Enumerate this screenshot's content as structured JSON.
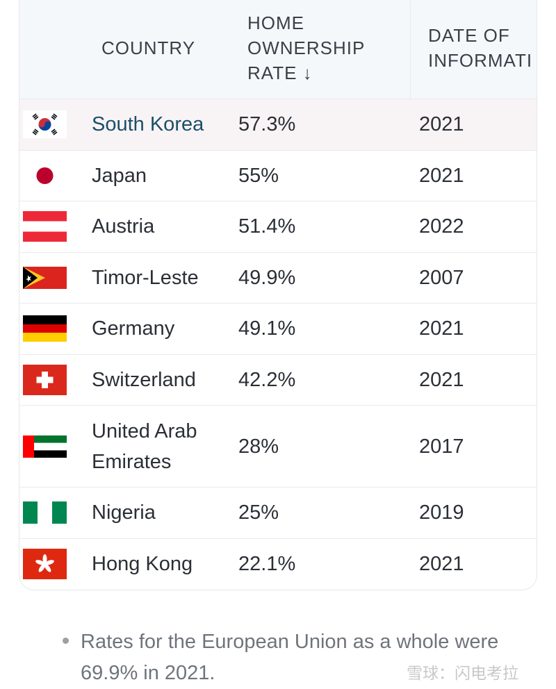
{
  "table": {
    "headers": {
      "country": "COUNTRY",
      "rate": "HOME OWNERSHIP RATE",
      "rate_sort_icon": "arrow-down-icon",
      "date": "DATE OF INFORMATI"
    },
    "rows": [
      {
        "flag": "south-korea-flag",
        "country": "South Korea",
        "rate": "57.3%",
        "date": "2021"
      },
      {
        "flag": "japan-flag",
        "country": "Japan",
        "rate": "55%",
        "date": "2021"
      },
      {
        "flag": "austria-flag",
        "country": "Austria",
        "rate": "51.4%",
        "date": "2022"
      },
      {
        "flag": "timor-leste-flag",
        "country": "Timor-Leste",
        "rate": "49.9%",
        "date": "2007"
      },
      {
        "flag": "germany-flag",
        "country": "Germany",
        "rate": "49.1%",
        "date": "2021"
      },
      {
        "flag": "switzerland-flag",
        "country": "Switzerland",
        "rate": "42.2%",
        "date": "2021"
      },
      {
        "flag": "uae-flag",
        "country": "United Arab Emirates",
        "rate": "28%",
        "date": "2017"
      },
      {
        "flag": "nigeria-flag",
        "country": "Nigeria",
        "rate": "25%",
        "date": "2019"
      },
      {
        "flag": "hong-kong-flag",
        "country": "Hong Kong",
        "rate": "22.1%",
        "date": "2021"
      }
    ]
  },
  "note": "Rates for the European Union as a whole were 69.9% in 2021.",
  "watermark": "雪球：闪电考拉"
}
